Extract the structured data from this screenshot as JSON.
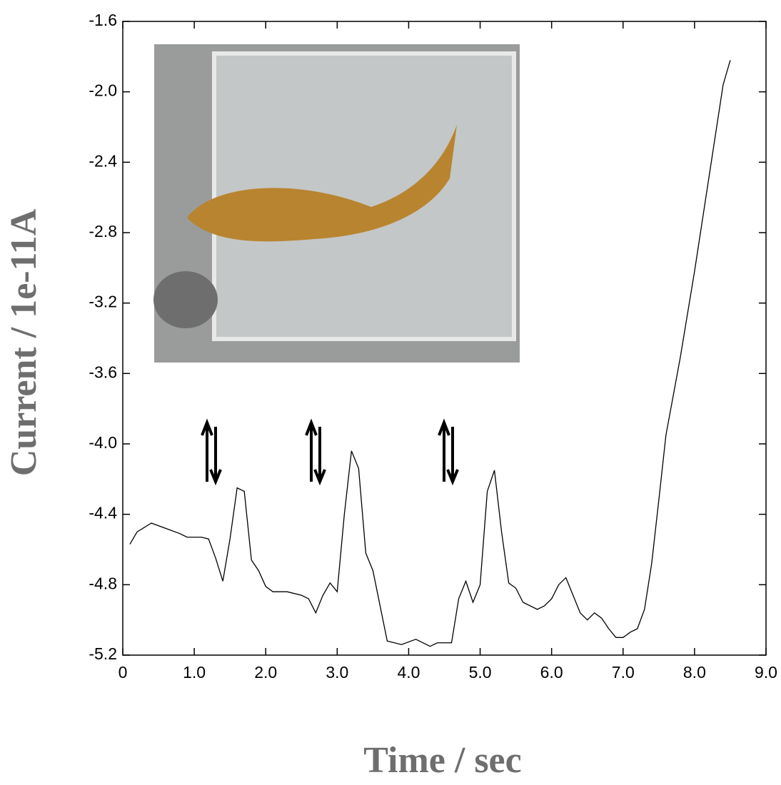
{
  "chart_data": {
    "type": "line",
    "x_label": "Time / sec",
    "y_label": "Current / 1e-11A",
    "xlim": [
      0,
      9
    ],
    "ylim": [
      -5.2,
      -1.6
    ],
    "xticks": [
      0,
      {
        "value": 1,
        "label": "1.0"
      },
      {
        "value": 2,
        "label": "2.0"
      },
      {
        "value": 3,
        "label": "3.0"
      },
      {
        "value": 4,
        "label": "4.0"
      },
      {
        "value": 5,
        "label": "5.0"
      },
      {
        "value": 6,
        "label": "6.0"
      },
      {
        "value": 7,
        "label": "7.0"
      },
      {
        "value": 8,
        "label": "8.0"
      },
      {
        "value": 9,
        "label": "9.0"
      }
    ],
    "yticks": [
      -1.6,
      {
        "value": -2,
        "label": "-2.0"
      },
      -2.4,
      -2.8,
      -3.2,
      -3.6,
      {
        "value": -4,
        "label": "-4.0"
      },
      -4.4,
      -4.8,
      -5.2
    ],
    "grid": false,
    "series": [
      {
        "color": "#000000",
        "x": [
          0.1,
          0.2,
          0.4,
          0.6,
          0.8,
          0.9,
          1.1,
          1.2,
          1.3,
          1.4,
          1.5,
          1.6,
          1.7,
          1.8,
          1.9,
          2.0,
          2.1,
          2.3,
          2.5,
          2.6,
          2.7,
          2.8,
          2.9,
          3.0,
          3.1,
          3.2,
          3.3,
          3.4,
          3.5,
          3.7,
          3.9,
          4.1,
          4.3,
          4.4,
          4.6,
          4.7,
          4.8,
          4.9,
          5.0,
          5.1,
          5.2,
          5.3,
          5.4,
          5.5,
          5.6,
          5.8,
          5.9,
          6.0,
          6.1,
          6.2,
          6.3,
          6.4,
          6.5,
          6.6,
          6.7,
          6.8,
          6.9,
          7.0,
          7.1,
          7.2,
          7.3,
          7.4,
          7.5,
          7.6,
          7.8,
          8.0,
          8.2,
          8.4,
          8.5
        ],
        "values": [
          -4.57,
          -4.5,
          -4.45,
          -4.48,
          -4.51,
          -4.53,
          -4.53,
          -4.54,
          -4.65,
          -4.78,
          -4.54,
          -4.25,
          -4.27,
          -4.66,
          -4.72,
          -4.81,
          -4.84,
          -4.84,
          -4.86,
          -4.88,
          -4.96,
          -4.86,
          -4.79,
          -4.84,
          -4.4,
          -4.04,
          -4.14,
          -4.62,
          -4.72,
          -5.12,
          -5.14,
          -5.11,
          -5.15,
          -5.13,
          -5.13,
          -4.88,
          -4.78,
          -4.9,
          -4.8,
          -4.27,
          -4.15,
          -4.5,
          -4.79,
          -4.82,
          -4.9,
          -4.94,
          -4.92,
          -4.88,
          -4.8,
          -4.76,
          -4.86,
          -4.96,
          -5.0,
          -4.96,
          -4.99,
          -5.05,
          -5.1,
          -5.1,
          -5.07,
          -5.05,
          -4.94,
          -4.68,
          -4.32,
          -3.95,
          -3.51,
          -3.02,
          -2.49,
          -1.96,
          -1.82
        ]
      }
    ]
  }
}
